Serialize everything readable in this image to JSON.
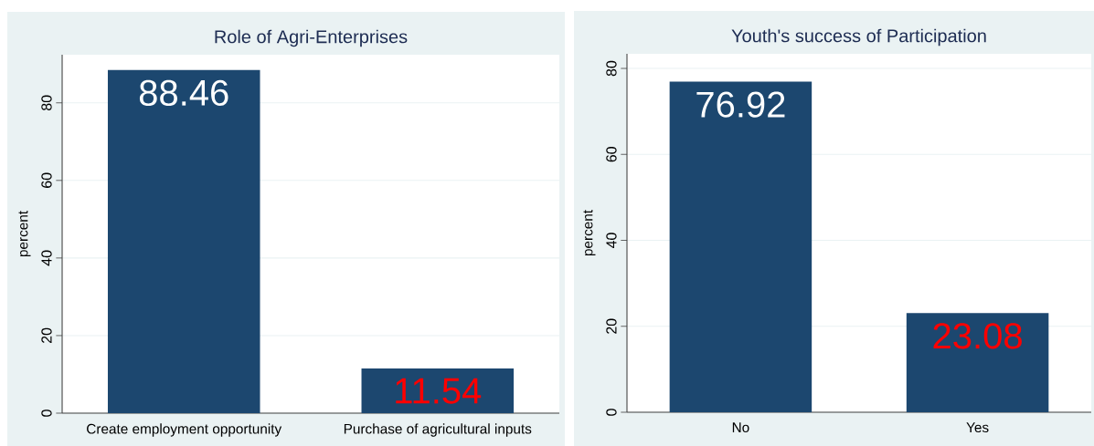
{
  "chart_data": [
    {
      "type": "bar",
      "title": "Role of Agri-Enterprises",
      "ylabel": "percent",
      "categories": [
        "Create employment opportunity",
        "Purchase of agricultural inputs"
      ],
      "values": [
        88.46,
        11.54
      ],
      "color": "#1c476f",
      "ylim": [
        0,
        92.4
      ],
      "yticks": [
        0,
        20,
        40,
        60,
        80
      ],
      "grid": "y",
      "data_labels": true
    },
    {
      "type": "bar",
      "title": "Youth's success of Participation",
      "ylabel": "percent",
      "categories": [
        "No",
        "Yes"
      ],
      "values": [
        76.92,
        23.08
      ],
      "color": "#1c476f",
      "ylim": [
        0,
        83.4
      ],
      "yticks": [
        0,
        20,
        40,
        60,
        80
      ],
      "grid": "y",
      "data_labels": true
    }
  ]
}
